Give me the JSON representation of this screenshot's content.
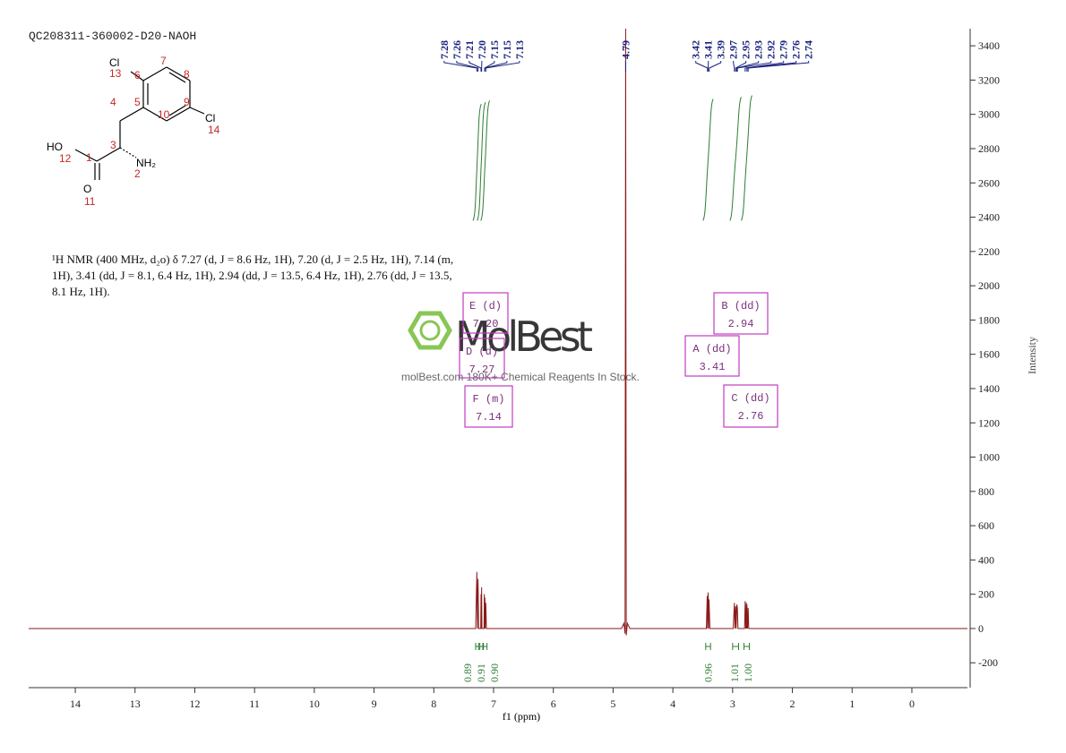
{
  "title": "QC208311-360002-D20-NAOH",
  "molecule": {
    "atoms": [
      "Cl",
      "Cl",
      "HO",
      "NH₂",
      "O"
    ],
    "locants": [
      "13",
      "7",
      "6",
      "8",
      "5",
      "10",
      "9",
      "14",
      "4",
      "3",
      "12",
      "1",
      "2",
      "11"
    ]
  },
  "description": "¹H NMR (400 MHz, d₂o) δ 7.27 (d, J = 8.6 Hz, 1H), 7.20 (d, J = 2.5 Hz, 1H), 7.14 (m, 1H), 3.41 (dd, J = 8.1, 6.4 Hz, 1H), 2.94 (dd, J = 13.5, 6.4 Hz, 1H), 2.76 (dd, J = 13.5, 8.1 Hz, 1H).",
  "watermark": {
    "brand": "MolBest",
    "tagline": "molBest.com 180K+ Chemical Reagents In Stock."
  },
  "chart_data": {
    "type": "line",
    "xlabel": "f1 (ppm)",
    "ylabel": "Intensity",
    "xlim": [
      14.78,
      -0.93
    ],
    "xticks": [
      14,
      13,
      12,
      11,
      10,
      9,
      8,
      7,
      6,
      5,
      4,
      3,
      2,
      1,
      0
    ],
    "ylim": [
      -345,
      3500
    ],
    "yticks": [
      -200,
      0,
      200,
      400,
      600,
      800,
      1000,
      1200,
      1400,
      1600,
      1800,
      2000,
      2200,
      2400,
      2600,
      2800,
      3000,
      3200,
      3400
    ],
    "x": [
      14.78,
      7.3,
      7.28,
      7.27,
      7.26,
      7.25,
      7.215,
      7.21,
      7.205,
      7.2,
      7.195,
      7.16,
      7.155,
      7.15,
      7.145,
      7.14,
      7.13,
      7.12,
      4.86,
      4.82,
      4.8,
      4.79,
      4.78,
      4.76,
      4.72,
      3.44,
      3.425,
      3.418,
      3.41,
      3.402,
      3.395,
      3.38,
      2.99,
      2.97,
      2.96,
      2.95,
      2.94,
      2.93,
      2.92,
      2.91,
      2.8,
      2.79,
      2.78,
      2.77,
      2.765,
      2.76,
      2.75,
      2.74,
      2.73,
      -0.93
    ],
    "series": [
      {
        "color": "#8b1a1a",
        "values": [
          0,
          0,
          330,
          0,
          290,
          0,
          0,
          200,
          0,
          240,
          0,
          0,
          200,
          0,
          180,
          0,
          150,
          0,
          0,
          30,
          -30,
          3500,
          -40,
          30,
          0,
          0,
          190,
          0,
          210,
          0,
          170,
          0,
          0,
          150,
          0,
          130,
          0,
          140,
          120,
          0,
          0,
          160,
          0,
          150,
          0,
          140,
          0,
          120,
          0,
          0
        ]
      }
    ],
    "peaks": {
      "values": [
        7.28,
        7.26,
        7.21,
        7.2,
        7.15,
        7.15,
        7.13,
        4.79,
        3.42,
        3.41,
        3.39,
        2.97,
        2.95,
        2.93,
        2.92,
        2.79,
        2.76,
        2.74
      ],
      "value_labels": [
        "7.28",
        "7.26",
        "7.21",
        "7.20",
        "7.15",
        "7.15",
        "7.13",
        "4.79",
        "3.42",
        "3.41",
        "3.39",
        "2.97",
        "2.95",
        "2.93",
        "2.92",
        "2.79",
        "2.76",
        "2.74"
      ]
    },
    "integrals": {
      "values": [
        0.89,
        0.91,
        0.9,
        0.96,
        1.01,
        1
      ],
      "value_labels": [
        "0.89",
        "0.91",
        "0.90",
        "0.96",
        "1.01",
        "1.00"
      ],
      "ranges": [
        [
          7.3,
          7.25
        ],
        [
          7.23,
          7.18
        ],
        [
          7.17,
          7.11
        ],
        [
          3.45,
          3.37
        ],
        [
          3.0,
          2.9
        ],
        [
          2.81,
          2.72
        ]
      ]
    },
    "multiplets": [
      {
        "name": "E (d)",
        "shift": 7.2,
        "shift_label": "7.20"
      },
      {
        "name": "D (d)",
        "shift": 7.27,
        "shift_label": "7.27"
      },
      {
        "name": "F (m)",
        "shift": 7.14,
        "shift_label": "7.14"
      },
      {
        "name": "B (dd)",
        "shift": 2.94,
        "shift_label": "2.94"
      },
      {
        "name": "A (dd)",
        "shift": 3.41,
        "shift_label": "3.41"
      },
      {
        "name": "C (dd)",
        "shift": 2.76,
        "shift_label": "2.76"
      }
    ]
  }
}
